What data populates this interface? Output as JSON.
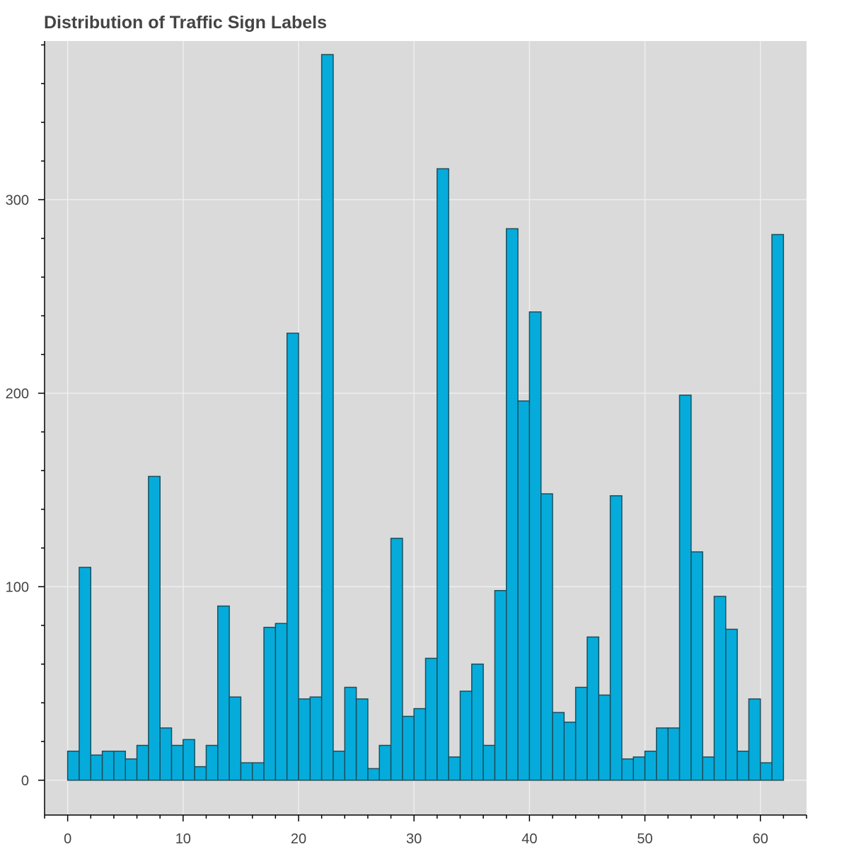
{
  "chart_data": {
    "type": "bar",
    "title": "Distribution of Traffic Sign Labels",
    "xlabel": "",
    "ylabel": "",
    "xlim": [
      -2,
      64
    ],
    "ylim": [
      -18,
      382
    ],
    "bin_start": 0,
    "bin_width": 1,
    "x_ticks": [
      0,
      10,
      20,
      30,
      40,
      50,
      60
    ],
    "y_ticks": [
      0,
      100,
      200,
      300
    ],
    "grid": true,
    "colors": {
      "bar_fill": "#05ACDB",
      "bar_stroke": "#1B4F5E",
      "plot_bg": "#DADADA",
      "grid": "#EEEEEE",
      "axis": "#000000"
    },
    "values": [
      15,
      110,
      13,
      15,
      15,
      11,
      18,
      157,
      27,
      18,
      21,
      7,
      18,
      90,
      43,
      9,
      9,
      79,
      81,
      231,
      42,
      43,
      375,
      15,
      48,
      42,
      6,
      18,
      125,
      33,
      37,
      63,
      316,
      12,
      46,
      60,
      18,
      98,
      285,
      196,
      242,
      148,
      35,
      30,
      48,
      74,
      44,
      147,
      11,
      12,
      15,
      27,
      27,
      199,
      118,
      12,
      95,
      78,
      15,
      42,
      9,
      282
    ]
  }
}
